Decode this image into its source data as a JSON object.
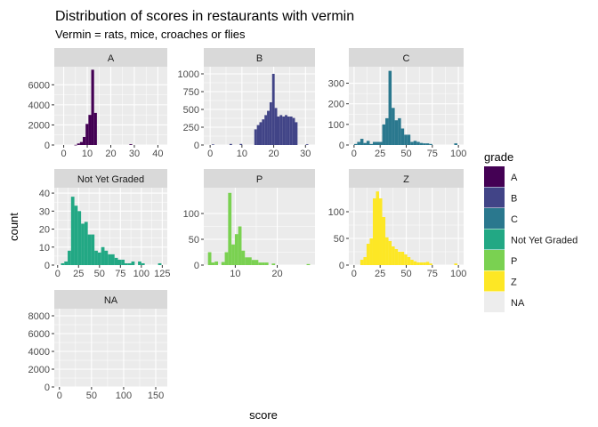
{
  "title": "Distribution of scores in restaurants with vermin",
  "subtitle": "Vermin = rats, mice, croaches or flies",
  "xlabel": "score",
  "ylabel": "count",
  "legend": {
    "title": "grade",
    "items": [
      {
        "label": "A",
        "color": "#440154"
      },
      {
        "label": "B",
        "color": "#414487"
      },
      {
        "label": "C",
        "color": "#2A788E"
      },
      {
        "label": "Not Yet Graded",
        "color": "#22A884"
      },
      {
        "label": "P",
        "color": "#7AD151"
      },
      {
        "label": "Z",
        "color": "#FDE725"
      },
      {
        "label": "NA",
        "color": "#EDEDED"
      }
    ]
  },
  "chart_data": {
    "type": "bar",
    "subtype": "faceted histogram",
    "grid": true,
    "legend_position": "right",
    "panels": [
      {
        "label": "A",
        "color": "#440154",
        "xlim": [
          -4,
          44
        ],
        "ylim": [
          0,
          7800
        ],
        "xticks": [
          0,
          10,
          20,
          30,
          40
        ],
        "yticks": [
          0,
          2000,
          4000,
          6000
        ],
        "bins": [
          [
            4.5,
            5.7,
            15
          ],
          [
            5.7,
            6.9,
            150
          ],
          [
            6.9,
            8.1,
            300
          ],
          [
            8.1,
            9.3,
            800
          ],
          [
            9.3,
            10.5,
            2100
          ],
          [
            10.5,
            11.7,
            3000
          ],
          [
            11.7,
            12.9,
            7500
          ],
          [
            12.9,
            14.1,
            3200
          ],
          [
            27.9,
            29.1,
            80
          ]
        ]
      },
      {
        "label": "B",
        "color": "#414487",
        "xlim": [
          -2,
          33
        ],
        "ylim": [
          0,
          1100
        ],
        "xticks": [
          0,
          10,
          20,
          30
        ],
        "yticks": [
          0,
          250,
          500,
          750,
          1000
        ],
        "bins": [
          [
            13.9,
            14.7,
            220
          ],
          [
            14.7,
            15.5,
            280
          ],
          [
            15.5,
            16.3,
            320
          ],
          [
            16.3,
            17.1,
            360
          ],
          [
            17.1,
            17.9,
            420
          ],
          [
            17.9,
            18.7,
            480
          ],
          [
            18.7,
            19.5,
            600
          ],
          [
            19.5,
            20.3,
            1000
          ],
          [
            20.3,
            21.1,
            520
          ],
          [
            21.1,
            21.9,
            400
          ],
          [
            21.9,
            22.7,
            420
          ],
          [
            22.7,
            23.5,
            400
          ],
          [
            23.5,
            24.3,
            420
          ],
          [
            24.3,
            25.1,
            400
          ],
          [
            25.1,
            25.9,
            400
          ],
          [
            25.9,
            26.7,
            380
          ],
          [
            26.7,
            27.5,
            320
          ],
          [
            0.5,
            1.3,
            8
          ],
          [
            6.1,
            6.9,
            15
          ],
          [
            9.3,
            10.1,
            15
          ],
          [
            30.1,
            30.9,
            10
          ]
        ]
      },
      {
        "label": "C",
        "color": "#2A788E",
        "xlim": [
          -5,
          105
        ],
        "ylim": [
          0,
          380
        ],
        "xticks": [
          0,
          25,
          50,
          75,
          100
        ],
        "yticks": [
          0,
          100,
          200,
          300
        ],
        "bins": [
          [
            0,
            3,
            5
          ],
          [
            3,
            6,
            15
          ],
          [
            6,
            9,
            30
          ],
          [
            9,
            12,
            10
          ],
          [
            12,
            15,
            20
          ],
          [
            15,
            18,
            5
          ],
          [
            18,
            21,
            15
          ],
          [
            21,
            24,
            15
          ],
          [
            24,
            27,
            15
          ],
          [
            27,
            30,
            100
          ],
          [
            30,
            33,
            130
          ],
          [
            33,
            36,
            360
          ],
          [
            36,
            39,
            180
          ],
          [
            39,
            42,
            120
          ],
          [
            42,
            45,
            130
          ],
          [
            45,
            48,
            80
          ],
          [
            48,
            51,
            50
          ],
          [
            51,
            54,
            50
          ],
          [
            54,
            57,
            15
          ],
          [
            57,
            60,
            20
          ],
          [
            60,
            63,
            15
          ],
          [
            63,
            66,
            10
          ],
          [
            66,
            69,
            8
          ],
          [
            69,
            72,
            8
          ],
          [
            72,
            75,
            5
          ],
          [
            96,
            99,
            8
          ]
        ]
      },
      {
        "label": "Not Yet Graded",
        "color": "#22A884",
        "xlim": [
          -4,
          131
        ],
        "ylim": [
          0,
          43
        ],
        "xticks": [
          0,
          25,
          50,
          75,
          100,
          125
        ],
        "yticks": [
          0,
          10,
          20,
          30,
          40
        ],
        "bins": [
          [
            4,
            8,
            1
          ],
          [
            8,
            12,
            2
          ],
          [
            12,
            16,
            8
          ],
          [
            16,
            20,
            38
          ],
          [
            20,
            24,
            33
          ],
          [
            24,
            28,
            30
          ],
          [
            28,
            32,
            23
          ],
          [
            32,
            36,
            24
          ],
          [
            36,
            40,
            17
          ],
          [
            40,
            44,
            17
          ],
          [
            44,
            48,
            8
          ],
          [
            48,
            52,
            7
          ],
          [
            52,
            56,
            10
          ],
          [
            56,
            60,
            8
          ],
          [
            60,
            64,
            6
          ],
          [
            64,
            68,
            6
          ],
          [
            68,
            72,
            4
          ],
          [
            72,
            76,
            3
          ],
          [
            76,
            80,
            3
          ],
          [
            80,
            84,
            1
          ],
          [
            84,
            88,
            1
          ],
          [
            88,
            92,
            2
          ],
          [
            96,
            100,
            2
          ],
          [
            100,
            104,
            1
          ],
          [
            120,
            124,
            1
          ]
        ]
      },
      {
        "label": "P",
        "color": "#7AD151",
        "xlim": [
          2.5,
          29
        ],
        "ylim": [
          0,
          150
        ],
        "xticks": [
          10,
          20
        ],
        "yticks": [
          0,
          50,
          100
        ],
        "bins": [
          [
            3.5,
            4.3,
            25
          ],
          [
            4.3,
            5.1,
            5
          ],
          [
            5.1,
            5.9,
            7
          ],
          [
            6.7,
            7.5,
            6
          ],
          [
            7.5,
            8.3,
            25
          ],
          [
            8.3,
            9.1,
            140
          ],
          [
            9.1,
            9.9,
            40
          ],
          [
            9.9,
            10.7,
            60
          ],
          [
            10.7,
            11.5,
            75
          ],
          [
            11.5,
            12.3,
            28
          ],
          [
            12.3,
            13.1,
            15
          ],
          [
            13.1,
            13.9,
            15
          ],
          [
            13.9,
            14.7,
            10
          ],
          [
            14.7,
            15.5,
            10
          ],
          [
            15.5,
            16.3,
            5
          ],
          [
            16.3,
            17.1,
            5
          ],
          [
            17.1,
            17.9,
            5
          ],
          [
            18.7,
            19.5,
            3
          ],
          [
            27,
            27.8,
            2
          ]
        ]
      },
      {
        "label": "Z",
        "color": "#FDE725",
        "xlim": [
          -5,
          105
        ],
        "ylim": [
          0,
          145
        ],
        "xticks": [
          0,
          25,
          50,
          75,
          100
        ],
        "yticks": [
          0,
          50,
          100
        ],
        "bins": [
          [
            6,
            9,
            10
          ],
          [
            9,
            12,
            15
          ],
          [
            12,
            15,
            40
          ],
          [
            15,
            18,
            50
          ],
          [
            18,
            21,
            125
          ],
          [
            21,
            24,
            138
          ],
          [
            24,
            27,
            125
          ],
          [
            27,
            30,
            90
          ],
          [
            30,
            33,
            52
          ],
          [
            33,
            36,
            45
          ],
          [
            36,
            39,
            35
          ],
          [
            39,
            42,
            30
          ],
          [
            42,
            45,
            25
          ],
          [
            45,
            48,
            25
          ],
          [
            48,
            51,
            20
          ],
          [
            51,
            54,
            15
          ],
          [
            54,
            57,
            10
          ],
          [
            57,
            60,
            7
          ],
          [
            60,
            63,
            5
          ],
          [
            63,
            66,
            5
          ],
          [
            66,
            69,
            5
          ],
          [
            69,
            72,
            6
          ],
          [
            72,
            75,
            3
          ],
          [
            96,
            99,
            3
          ]
        ]
      },
      {
        "label": "NA",
        "color": "#EDEDED",
        "xlim": [
          -8,
          168
        ],
        "ylim": [
          0,
          8800
        ],
        "xticks": [
          0,
          50,
          100,
          150
        ],
        "yticks": [
          0,
          2000,
          4000,
          6000,
          8000
        ],
        "bins": []
      }
    ]
  }
}
